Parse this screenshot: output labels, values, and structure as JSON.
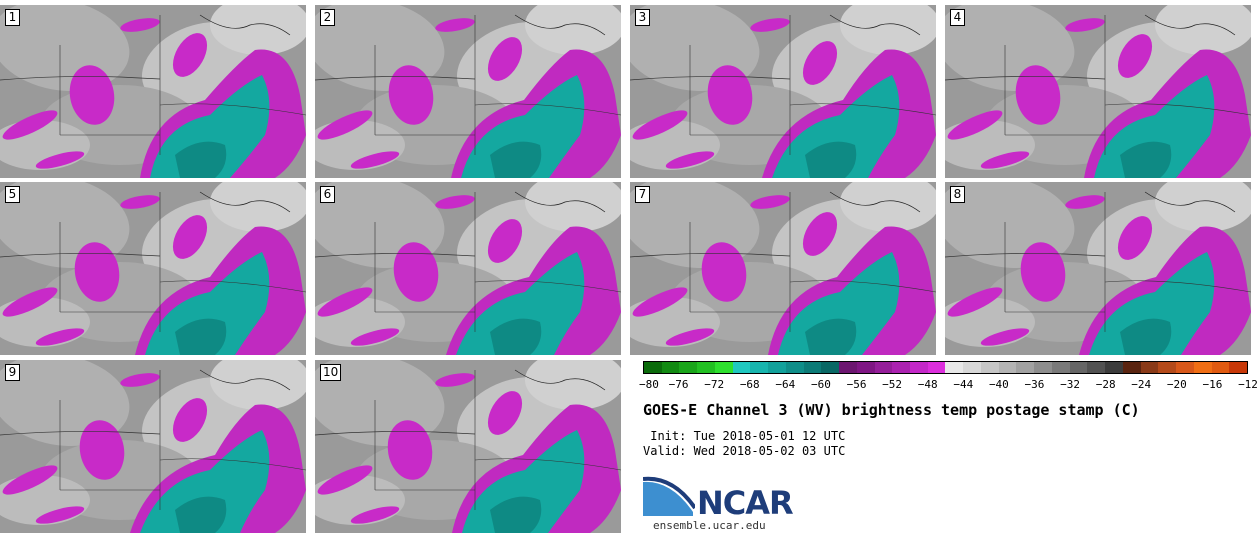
{
  "panels": [
    {
      "label": "1"
    },
    {
      "label": "2"
    },
    {
      "label": "3"
    },
    {
      "label": "4"
    },
    {
      "label": "5"
    },
    {
      "label": "6"
    },
    {
      "label": "7"
    },
    {
      "label": "8"
    },
    {
      "label": "9"
    },
    {
      "label": "10"
    }
  ],
  "colorbar": {
    "colors": [
      "#0b6b0b",
      "#128a12",
      "#1aa51a",
      "#22c022",
      "#2ee02e",
      "#20c8c0",
      "#18b5ae",
      "#12a19b",
      "#0f8e89",
      "#0c7b77",
      "#096865",
      "#6c1670",
      "#7f1684",
      "#951e9a",
      "#ab22b0",
      "#c428c8",
      "#dc2edc",
      "#e8e8e8",
      "#d8d8d8",
      "#c6c6c6",
      "#b4b4b4",
      "#a2a2a2",
      "#8e8e8e",
      "#7a7a7a",
      "#666666",
      "#525252",
      "#3c3c3c",
      "#5a2410",
      "#8a3a18",
      "#b44a1a",
      "#d8581a",
      "#f06e14",
      "#e05a10",
      "#c83808"
    ],
    "tick_labels": [
      "−80",
      "−76",
      "−72",
      "−68",
      "−64",
      "−60",
      "−56",
      "−52",
      "−48",
      "−44",
      "−40",
      "−36",
      "−32",
      "−28",
      "−24",
      "−20",
      "−16",
      "−12"
    ]
  },
  "title": "GOES-E Channel 3 (WV) brightness temp postage stamp (C)",
  "init_label": " Init: Tue 2018-05-01 12 UTC",
  "valid_label": "Valid: Wed 2018-05-02 03 UTC",
  "logo": {
    "name": "NCAR",
    "url": "ensemble.ucar.edu"
  }
}
